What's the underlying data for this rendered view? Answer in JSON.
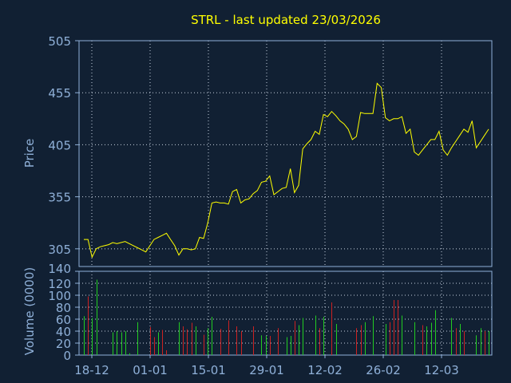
{
  "colors": {
    "background": "#112033",
    "axis": "#8fb0d8",
    "tick_text": "#8fb0d8",
    "grid": "#c8d2e0",
    "title": "#ffff00",
    "price_line": "#ffff00",
    "volume_up": "#22cc22",
    "volume_down": "#cc2222"
  },
  "chart_data": [
    {
      "type": "line",
      "title": "STRL - last updated 23/03/2026",
      "ylabel": "Price",
      "ylim": [
        288,
        505
      ],
      "y_ticks": [
        "505",
        "455",
        "405",
        "355",
        "305"
      ],
      "x_ticks": [
        "18-12",
        "01-01",
        "15-01",
        "29-01",
        "12-02",
        "26-02",
        "12-03"
      ],
      "grid": true,
      "series": [
        {
          "values": [
            314,
            314,
            297,
            305,
            307,
            308,
            309,
            311,
            310,
            311,
            312,
            310,
            308,
            306,
            304,
            302,
            308,
            314,
            316,
            318,
            320,
            314,
            308,
            299,
            305,
            305,
            304,
            305,
            316,
            315,
            330,
            349,
            350,
            349,
            349,
            348,
            360,
            362,
            349,
            352,
            353,
            358,
            361,
            369,
            370,
            375,
            357,
            360,
            363,
            364,
            382,
            359,
            366,
            401,
            406,
            410,
            418,
            415,
            434,
            432,
            437,
            433,
            428,
            425,
            420,
            410,
            413,
            436,
            435,
            435,
            435,
            464,
            460,
            431,
            428,
            430,
            430,
            432,
            416,
            420,
            398,
            395,
            400,
            405,
            410,
            410,
            418,
            400,
            395,
            402,
            408,
            414,
            420,
            417,
            428,
            402,
            408,
            414,
            420
          ]
        }
      ]
    },
    {
      "type": "bar",
      "ylabel": "Volume (0000)",
      "ylim": [
        0,
        140
      ],
      "y_ticks": [
        "140",
        "120",
        "100",
        "80",
        "60",
        "40",
        "20",
        "0"
      ],
      "x_ticks": [
        "18-12",
        "01-01",
        "15-01",
        "29-01",
        "12-02",
        "26-02",
        "12-03"
      ],
      "grid": true,
      "series": [
        {
          "values": [
            65,
            98,
            62,
            126,
            0,
            0,
            0,
            38,
            40,
            38,
            40,
            3,
            0,
            55,
            0,
            0,
            47,
            30,
            38,
            42,
            8,
            0,
            0,
            55,
            48,
            43,
            54,
            48,
            0,
            34,
            45,
            64,
            0,
            44,
            0,
            58,
            0,
            48,
            40,
            0,
            0,
            48,
            0,
            33,
            32,
            32,
            0,
            45,
            0,
            30,
            32,
            57,
            50,
            62,
            0,
            0,
            66,
            45,
            64,
            0,
            88,
            52,
            0,
            0,
            0,
            0,
            45,
            50,
            55,
            0,
            65,
            0,
            0,
            52,
            55,
            92,
            92,
            66,
            0,
            0,
            55,
            0,
            50,
            48,
            54,
            75,
            0,
            0,
            0,
            62,
            45,
            52,
            40,
            0,
            0,
            33,
            45,
            40,
            40
          ],
          "up": [
            true,
            false,
            true,
            true,
            true,
            true,
            true,
            true,
            true,
            true,
            true,
            true,
            true,
            true,
            true,
            true,
            false,
            false,
            true,
            false,
            false,
            true,
            true,
            true,
            false,
            false,
            false,
            true,
            true,
            false,
            true,
            true,
            true,
            false,
            false,
            false,
            true,
            false,
            false,
            true,
            true,
            false,
            true,
            true,
            true,
            false,
            true,
            false,
            true,
            true,
            true,
            false,
            true,
            true,
            true,
            true,
            true,
            false,
            true,
            true,
            false,
            true,
            true,
            true,
            true,
            true,
            false,
            false,
            true,
            true,
            true,
            true,
            true,
            true,
            false,
            false,
            false,
            true,
            true,
            true,
            true,
            true,
            false,
            true,
            true,
            true,
            true,
            true,
            true,
            true,
            false,
            true,
            false,
            true,
            true,
            true,
            true,
            false,
            true
          ]
        }
      ]
    }
  ]
}
